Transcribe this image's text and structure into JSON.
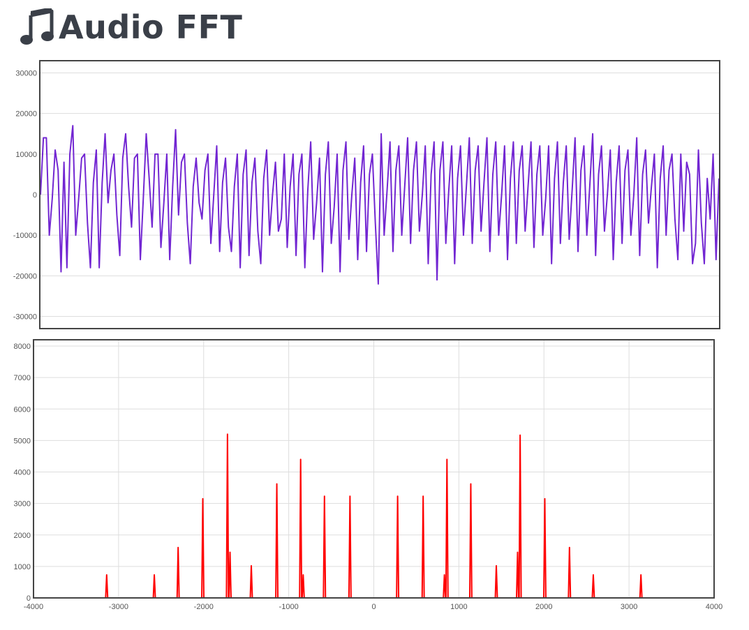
{
  "page": {
    "title": "Audio FFT",
    "icon": "music-note-icon",
    "heading_color": "#3a3f48"
  },
  "chart_data": [
    {
      "type": "line",
      "title": "",
      "xlabel": "",
      "ylabel": "",
      "color": "#7226d2",
      "ylim": [
        -33000,
        33000
      ],
      "yticks": [
        30000,
        20000,
        10000,
        0,
        -10000,
        -20000,
        -30000
      ],
      "ytick_labels": [
        "30000",
        "20000",
        "10000",
        "0",
        "-10000",
        "-20000",
        "-30000"
      ],
      "grid": true,
      "series": [
        {
          "values": [
            0,
            14000,
            14000,
            -10000,
            -1000,
            11000,
            6000,
            -19000,
            8000,
            -18000,
            10000,
            17000,
            -10000,
            -1000,
            9000,
            10000,
            -7000,
            -18000,
            3000,
            11000,
            -18000,
            3000,
            15000,
            -2000,
            6000,
            10000,
            -5000,
            -15000,
            9000,
            15000,
            2000,
            -8000,
            9000,
            10000,
            -16000,
            -1000,
            15000,
            4000,
            -8000,
            10000,
            10000,
            -13000,
            -2000,
            10000,
            -16000,
            2000,
            16000,
            -5000,
            8000,
            10000,
            -7000,
            -17000,
            2000,
            9000,
            -2000,
            -6000,
            6000,
            10000,
            -12000,
            0,
            12000,
            -14000,
            3000,
            9000,
            -8000,
            -14000,
            2000,
            10000,
            -18000,
            5000,
            11000,
            -15000,
            3000,
            9000,
            -9000,
            -17000,
            4000,
            11000,
            -10000,
            0,
            8000,
            -9000,
            -6000,
            10000,
            -13000,
            2000,
            10000,
            -15000,
            5000,
            10000,
            -18000,
            1000,
            13000,
            -11000,
            -2000,
            9000,
            -19000,
            5000,
            13000,
            -12000,
            -3000,
            10000,
            -19000,
            6000,
            13000,
            -11000,
            0,
            9000,
            -16000,
            3000,
            12000,
            -14000,
            5000,
            10000,
            -7000,
            -22000,
            15000,
            -10000,
            1000,
            13000,
            -14000,
            6000,
            12000,
            -10000,
            2000,
            14000,
            -12000,
            6000,
            13000,
            -9000,
            0,
            12000,
            -17000,
            5000,
            13000,
            -21000,
            6000,
            13000,
            -12000,
            1000,
            12000,
            -17000,
            4000,
            12000,
            -10000,
            2000,
            14000,
            -12000,
            6000,
            12000,
            -9000,
            3000,
            14000,
            -14000,
            5000,
            13000,
            -10000,
            0,
            12000,
            -16000,
            4000,
            13000,
            -12000,
            6000,
            12000,
            -9000,
            2000,
            13000,
            -13000,
            5000,
            12000,
            -10000,
            -1000,
            12000,
            -17000,
            4000,
            13000,
            -12000,
            3000,
            12000,
            -11000,
            1000,
            14000,
            -14000,
            6000,
            12000,
            -10000,
            2000,
            15000,
            -15000,
            5000,
            12000,
            -9000,
            0,
            11000,
            -16000,
            3000,
            12000,
            -12000,
            6000,
            11000,
            -10000,
            0,
            14000,
            -15000,
            5000,
            11000,
            -7000,
            2000,
            10000,
            -18000,
            4000,
            12000,
            -10000,
            6000,
            10000,
            -6000,
            -16000,
            10000,
            -9000,
            8000,
            5000,
            -17000,
            -12000,
            11000,
            -7000,
            -17000,
            4000,
            -6000,
            10000,
            -16000,
            4000
          ]
        }
      ]
    },
    {
      "type": "line",
      "title": "",
      "xlabel": "",
      "ylabel": "",
      "color": "#ff0000",
      "xlim": [
        -4000,
        4000
      ],
      "ylim": [
        0,
        8200
      ],
      "xticks": [
        -4000,
        -3000,
        -2000,
        -1000,
        0,
        1000,
        2000,
        3000,
        4000
      ],
      "xtick_labels": [
        "-4000",
        "-3000",
        "-2000",
        "-1000",
        "0",
        "1000",
        "2000",
        "3000",
        "4000"
      ],
      "yticks": [
        0,
        1000,
        2000,
        3000,
        4000,
        5000,
        6000,
        7000,
        8000
      ],
      "ytick_labels": [
        "0",
        "1000",
        "2000",
        "3000",
        "4000",
        "5000",
        "6000",
        "7000",
        "8000"
      ],
      "grid": true,
      "peaks": [
        {
          "x": -3140,
          "y": 730
        },
        {
          "x": -2580,
          "y": 730
        },
        {
          "x": -2300,
          "y": 1600
        },
        {
          "x": -2010,
          "y": 3150
        },
        {
          "x": -1720,
          "y": 5200
        },
        {
          "x": -1690,
          "y": 1450
        },
        {
          "x": -1440,
          "y": 1020
        },
        {
          "x": -1140,
          "y": 3620
        },
        {
          "x": -860,
          "y": 4400
        },
        {
          "x": -830,
          "y": 730
        },
        {
          "x": -580,
          "y": 3230
        },
        {
          "x": -280,
          "y": 3230
        },
        {
          "x": 280,
          "y": 3230
        },
        {
          "x": 580,
          "y": 3230
        },
        {
          "x": 830,
          "y": 730
        },
        {
          "x": 860,
          "y": 4400
        },
        {
          "x": 1140,
          "y": 3620
        },
        {
          "x": 1440,
          "y": 1020
        },
        {
          "x": 1690,
          "y": 1450
        },
        {
          "x": 1720,
          "y": 5170
        },
        {
          "x": 2010,
          "y": 3150
        },
        {
          "x": 2300,
          "y": 1600
        },
        {
          "x": 2580,
          "y": 730
        },
        {
          "x": 3140,
          "y": 730
        }
      ]
    }
  ]
}
